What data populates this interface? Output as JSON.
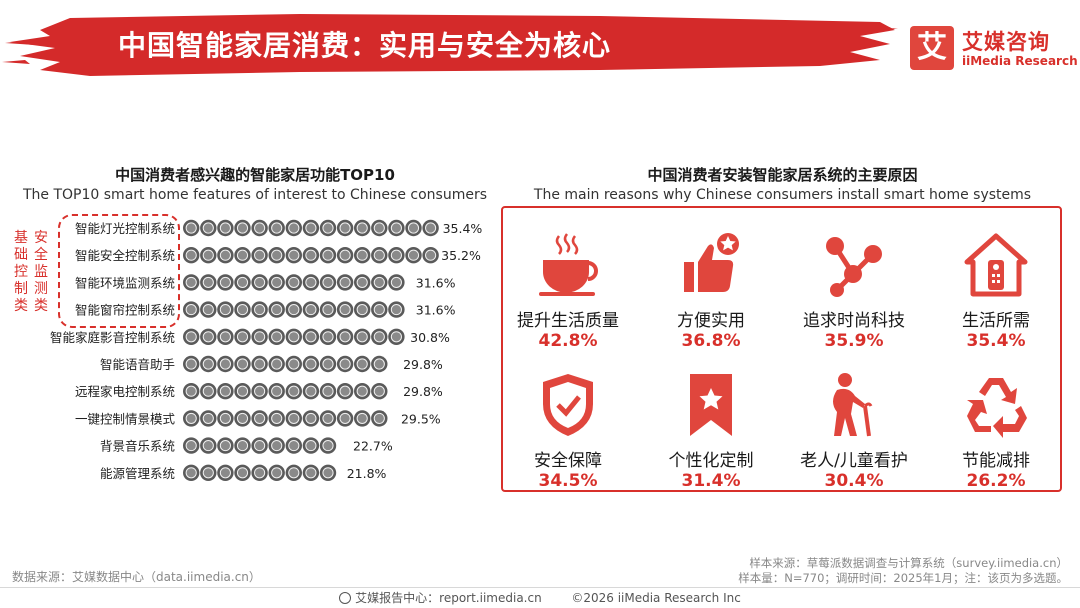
{
  "header": {
    "title": "中国智能家居消费：实用与安全为核心",
    "logo_mark": "艾",
    "logo_cn": "艾媒咨询",
    "logo_en": "iiMedia Research"
  },
  "left_section": {
    "title_cn": "中国消费者感兴趣的智能家居功能TOP10",
    "title_en": "The TOP10 smart home features of interest to Chinese consumers",
    "group_label": "安全监测类",
    "group_label_2": "基础控制类"
  },
  "right_section": {
    "title_cn": "中国消费者安装智能家居系统的主要原因",
    "title_en": "The main reasons why Chinese consumers install smart home systems",
    "reasons": [
      {
        "label": "提升生活质量",
        "value": "42.8%",
        "icon": "coffee-cup-icon"
      },
      {
        "label": "方便实用",
        "value": "36.8%",
        "icon": "thumbs-up-star-icon"
      },
      {
        "label": "追求时尚科技",
        "value": "35.9%",
        "icon": "share-network-icon"
      },
      {
        "label": "生活所需",
        "value": "35.4%",
        "icon": "home-remote-icon"
      },
      {
        "label": "安全保障",
        "value": "34.5%",
        "icon": "shield-check-icon"
      },
      {
        "label": "个性化定制",
        "value": "31.4%",
        "icon": "bookmark-star-icon"
      },
      {
        "label": "老人/儿童看护",
        "value": "30.4%",
        "icon": "elderly-person-icon"
      },
      {
        "label": "节能减排",
        "value": "26.2%",
        "icon": "recycle-icon"
      }
    ]
  },
  "chart_data": {
    "type": "bar",
    "orientation": "horizontal",
    "title": "中国消费者感兴趣的智能家居功能TOP10",
    "subtitle": "The TOP10 smart home features of interest to Chinese consumers",
    "categories": [
      "智能灯光控制系统",
      "智能安全控制系统",
      "智能环境监测系统",
      "智能窗帘控制系统",
      "智能家庭影音控制系统",
      "智能语音助手",
      "远程家电控制系统",
      "一键控制情景模式",
      "背景音乐系统",
      "能源管理系统"
    ],
    "values": [
      35.4,
      35.2,
      31.6,
      31.6,
      30.8,
      29.8,
      29.8,
      29.5,
      22.7,
      21.8
    ],
    "value_labels": [
      "35.4%",
      "35.2%",
      "31.6%",
      "31.6%",
      "30.8%",
      "29.8%",
      "29.8%",
      "29.5%",
      "22.7%",
      "21.8%"
    ],
    "unit": "%",
    "marker": "pictogram-disc",
    "grid": false
  },
  "footer": {
    "source": "数据来源：艾媒数据中心（data.iimedia.cn）",
    "note_line1": "样本来源：草莓派数据调查与计算系统（survey.iimedia.cn）",
    "note_line2": "样本量：N=770；调研时间：2025年1月；注：该页为多选题。",
    "report_center": "艾媒报告中心：report.iimedia.cn",
    "copyright": "©2026  iiMedia Research  Inc"
  },
  "colors": {
    "accent": "#d8302b",
    "banner": "#d42a2a",
    "icon": "#e0463d",
    "disc": "#5a5a5a"
  }
}
